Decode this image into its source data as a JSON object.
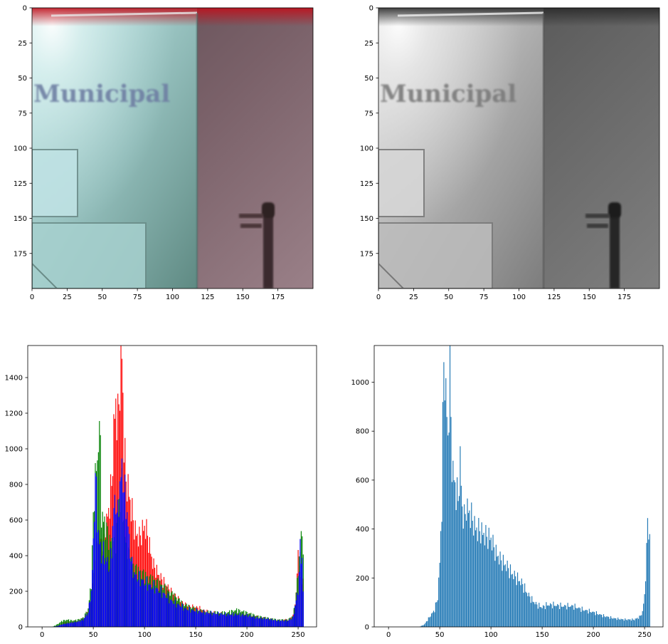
{
  "figure": {
    "layout": "2x2 subplots"
  },
  "image_panels": [
    {
      "id": "color-image",
      "colormap": "rgb",
      "sign_text": "Municipal",
      "xlim": [
        0,
        200
      ],
      "ylim": [
        200,
        0
      ],
      "xticks": [
        0,
        25,
        50,
        75,
        100,
        125,
        150,
        175
      ],
      "yticks": [
        0,
        25,
        50,
        75,
        100,
        125,
        150,
        175
      ],
      "colors": {
        "panel_light": "#bde3e4",
        "panel_mid": "#6f9c98",
        "wall": "#8a6f78",
        "wall_dark": "#5d4e56",
        "top_glow": "#c0101c",
        "text": "#6e7fa3",
        "pole": "#3a2a2e"
      }
    },
    {
      "id": "grayscale-image",
      "colormap": "gray",
      "sign_text": "Municipal",
      "xlim": [
        0,
        200
      ],
      "ylim": [
        200,
        0
      ],
      "xticks": [
        0,
        25,
        50,
        75,
        100,
        125,
        150,
        175
      ],
      "yticks": [
        0,
        25,
        50,
        75,
        100,
        125,
        150,
        175
      ],
      "colors": {
        "panel_light": "#dcdcdc",
        "panel_mid": "#8a8a8a",
        "wall": "#6b6b6b",
        "wall_dark": "#4e4e4e",
        "top_glow": "#333333",
        "text": "#7a7a7a",
        "pole": "#262626"
      }
    }
  ],
  "chart_data": [
    {
      "type": "bar",
      "id": "rgb-histogram",
      "title": "",
      "xlabel": "",
      "ylabel": "",
      "xlim": [
        -14,
        268
      ],
      "ylim": [
        0,
        1580
      ],
      "xticks": [
        0,
        50,
        100,
        150,
        200,
        250
      ],
      "yticks": [
        0,
        200,
        400,
        600,
        800,
        1000,
        1200,
        1400
      ],
      "grid": false,
      "legend": "none",
      "series": [
        {
          "color": "#ff0000",
          "points": [
            [
              0,
              0
            ],
            [
              10,
              0
            ],
            [
              15,
              5
            ],
            [
              20,
              25
            ],
            [
              25,
              30
            ],
            [
              30,
              30
            ],
            [
              35,
              35
            ],
            [
              40,
              45
            ],
            [
              45,
              90
            ],
            [
              48,
              160
            ],
            [
              50,
              300
            ],
            [
              52,
              430
            ],
            [
              55,
              520
            ],
            [
              58,
              480
            ],
            [
              60,
              500
            ],
            [
              62,
              560
            ],
            [
              65,
              650
            ],
            [
              68,
              800
            ],
            [
              70,
              1100
            ],
            [
              72,
              1250
            ],
            [
              74,
              1150
            ],
            [
              76,
              1370
            ],
            [
              78,
              1520
            ],
            [
              80,
              1050
            ],
            [
              82,
              820
            ],
            [
              84,
              780
            ],
            [
              86,
              700
            ],
            [
              88,
              640
            ],
            [
              90,
              560
            ],
            [
              92,
              520
            ],
            [
              95,
              500
            ],
            [
              98,
              540
            ],
            [
              100,
              560
            ],
            [
              102,
              540
            ],
            [
              105,
              450
            ],
            [
              108,
              360
            ],
            [
              110,
              330
            ],
            [
              115,
              280
            ],
            [
              120,
              240
            ],
            [
              125,
              200
            ],
            [
              130,
              170
            ],
            [
              135,
              140
            ],
            [
              140,
              120
            ],
            [
              145,
              110
            ],
            [
              150,
              110
            ],
            [
              155,
              100
            ],
            [
              160,
              85
            ],
            [
              170,
              75
            ],
            [
              180,
              70
            ],
            [
              190,
              75
            ],
            [
              200,
              70
            ],
            [
              210,
              55
            ],
            [
              220,
              45
            ],
            [
              230,
              35
            ],
            [
              240,
              40
            ],
            [
              245,
              60
            ],
            [
              248,
              180
            ],
            [
              250,
              420
            ],
            [
              252,
              300
            ],
            [
              255,
              250
            ]
          ]
        },
        {
          "color": "#008000",
          "points": [
            [
              0,
              0
            ],
            [
              10,
              0
            ],
            [
              15,
              15
            ],
            [
              20,
              35
            ],
            [
              25,
              40
            ],
            [
              30,
              35
            ],
            [
              35,
              40
            ],
            [
              40,
              50
            ],
            [
              45,
              100
            ],
            [
              48,
              250
            ],
            [
              50,
              600
            ],
            [
              52,
              880
            ],
            [
              54,
              870
            ],
            [
              55,
              1150
            ],
            [
              57,
              1000
            ],
            [
              58,
              640
            ],
            [
              60,
              590
            ],
            [
              62,
              570
            ],
            [
              65,
              500
            ],
            [
              68,
              470
            ],
            [
              70,
              450
            ],
            [
              72,
              480
            ],
            [
              74,
              620
            ],
            [
              76,
              740
            ],
            [
              78,
              820
            ],
            [
              80,
              560
            ],
            [
              82,
              450
            ],
            [
              84,
              420
            ],
            [
              86,
              380
            ],
            [
              88,
              350
            ],
            [
              90,
              330
            ],
            [
              95,
              310
            ],
            [
              100,
              290
            ],
            [
              105,
              270
            ],
            [
              110,
              260
            ],
            [
              115,
              240
            ],
            [
              120,
              220
            ],
            [
              125,
              190
            ],
            [
              130,
              170
            ],
            [
              135,
              140
            ],
            [
              140,
              120
            ],
            [
              145,
              110
            ],
            [
              150,
              100
            ],
            [
              155,
              90
            ],
            [
              160,
              85
            ],
            [
              170,
              80
            ],
            [
              180,
              80
            ],
            [
              190,
              95
            ],
            [
              200,
              80
            ],
            [
              210,
              60
            ],
            [
              220,
              50
            ],
            [
              230,
              40
            ],
            [
              240,
              40
            ],
            [
              245,
              60
            ],
            [
              248,
              180
            ],
            [
              250,
              330
            ],
            [
              252,
              420
            ],
            [
              254,
              590
            ],
            [
              255,
              380
            ]
          ]
        },
        {
          "color": "#0000ff",
          "points": [
            [
              0,
              0
            ],
            [
              10,
              0
            ],
            [
              15,
              5
            ],
            [
              20,
              15
            ],
            [
              25,
              20
            ],
            [
              30,
              25
            ],
            [
              35,
              30
            ],
            [
              40,
              40
            ],
            [
              45,
              80
            ],
            [
              48,
              200
            ],
            [
              50,
              450
            ],
            [
              52,
              880
            ],
            [
              54,
              600
            ],
            [
              56,
              470
            ],
            [
              58,
              400
            ],
            [
              60,
              420
            ],
            [
              62,
              380
            ],
            [
              64,
              360
            ],
            [
              66,
              330
            ],
            [
              68,
              440
            ],
            [
              70,
              670
            ],
            [
              72,
              700
            ],
            [
              74,
              620
            ],
            [
              76,
              800
            ],
            [
              78,
              880
            ],
            [
              80,
              780
            ],
            [
              82,
              700
            ],
            [
              84,
              560
            ],
            [
              86,
              420
            ],
            [
              88,
              340
            ],
            [
              90,
              300
            ],
            [
              92,
              280
            ],
            [
              95,
              270
            ],
            [
              100,
              250
            ],
            [
              105,
              230
            ],
            [
              110,
              220
            ],
            [
              115,
              200
            ],
            [
              120,
              180
            ],
            [
              125,
              150
            ],
            [
              130,
              130
            ],
            [
              135,
              120
            ],
            [
              140,
              100
            ],
            [
              145,
              95
            ],
            [
              150,
              90
            ],
            [
              155,
              85
            ],
            [
              160,
              80
            ],
            [
              170,
              75
            ],
            [
              180,
              70
            ],
            [
              190,
              70
            ],
            [
              200,
              65
            ],
            [
              210,
              50
            ],
            [
              220,
              45
            ],
            [
              230,
              35
            ],
            [
              240,
              35
            ],
            [
              245,
              50
            ],
            [
              248,
              150
            ],
            [
              250,
              200
            ],
            [
              252,
              430
            ],
            [
              254,
              380
            ],
            [
              255,
              200
            ]
          ]
        }
      ]
    },
    {
      "type": "bar",
      "id": "grayscale-histogram",
      "title": "",
      "xlabel": "",
      "ylabel": "",
      "xlim": [
        -14,
        268
      ],
      "ylim": [
        0,
        1150
      ],
      "xticks": [
        0,
        50,
        100,
        150,
        200,
        250
      ],
      "yticks": [
        0,
        200,
        400,
        600,
        800,
        1000
      ],
      "grid": false,
      "legend": "none",
      "series": [
        {
          "color": "#1f77b4",
          "points": [
            [
              0,
              0
            ],
            [
              30,
              0
            ],
            [
              35,
              10
            ],
            [
              40,
              40
            ],
            [
              45,
              70
            ],
            [
              48,
              120
            ],
            [
              50,
              260
            ],
            [
              52,
              500
            ],
            [
              54,
              1100
            ],
            [
              56,
              950
            ],
            [
              58,
              760
            ],
            [
              60,
              1080
            ],
            [
              62,
              660
            ],
            [
              64,
              600
            ],
            [
              66,
              550
            ],
            [
              68,
              520
            ],
            [
              70,
              680
            ],
            [
              72,
              480
            ],
            [
              74,
              440
            ],
            [
              76,
              490
            ],
            [
              78,
              470
            ],
            [
              80,
              460
            ],
            [
              85,
              400
            ],
            [
              90,
              390
            ],
            [
              95,
              370
            ],
            [
              100,
              360
            ],
            [
              105,
              300
            ],
            [
              110,
              270
            ],
            [
              115,
              250
            ],
            [
              120,
              220
            ],
            [
              125,
              200
            ],
            [
              130,
              180
            ],
            [
              135,
              140
            ],
            [
              140,
              110
            ],
            [
              145,
              90
            ],
            [
              150,
              80
            ],
            [
              155,
              90
            ],
            [
              160,
              90
            ],
            [
              170,
              85
            ],
            [
              180,
              85
            ],
            [
              190,
              70
            ],
            [
              200,
              60
            ],
            [
              210,
              45
            ],
            [
              220,
              35
            ],
            [
              230,
              30
            ],
            [
              240,
              30
            ],
            [
              245,
              40
            ],
            [
              248,
              60
            ],
            [
              250,
              130
            ],
            [
              252,
              300
            ],
            [
              253,
              450
            ],
            [
              255,
              350
            ]
          ]
        }
      ]
    }
  ]
}
